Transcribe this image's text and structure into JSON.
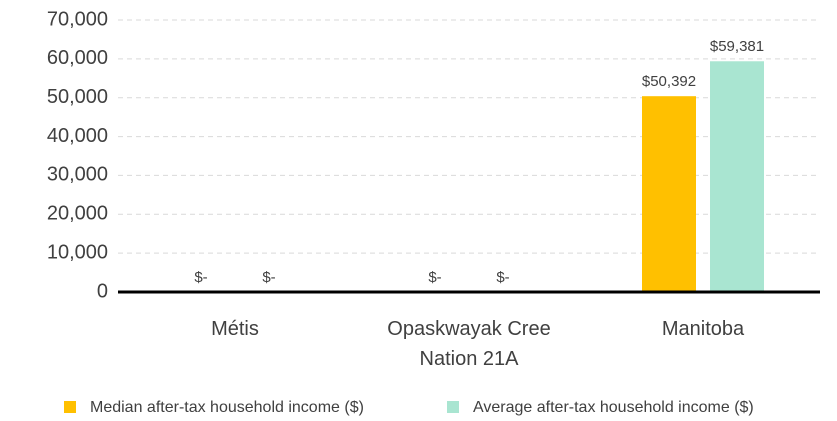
{
  "chart_data": {
    "type": "bar",
    "categories": [
      "Métis",
      "Opaskwayak Cree Nation 21A",
      "Manitoba"
    ],
    "series": [
      {
        "name": "Median after-tax household income ($)",
        "color": "#ffc000",
        "values": [
          0,
          0,
          50392
        ],
        "value_labels": [
          "$-",
          "$-",
          "$50,392"
        ]
      },
      {
        "name": "Average after-tax household income ($)",
        "color": "#a9e5d1",
        "values": [
          0,
          0,
          59381
        ],
        "value_labels": [
          "$-",
          "$-",
          "$59,381"
        ]
      }
    ],
    "ylim": [
      0,
      70000
    ],
    "yticks": [
      0,
      {
        "value": 10000,
        "label": "10,000"
      },
      {
        "value": 20000,
        "label": "20,000"
      },
      {
        "value": 30000,
        "label": "30,000"
      },
      {
        "value": 40000,
        "label": "40,000"
      },
      {
        "value": 50000,
        "label": "50,000"
      },
      {
        "value": 60000,
        "label": "60,000"
      },
      {
        "value": 70000,
        "label": "70,000"
      }
    ],
    "grid": true,
    "legend": "bottom"
  }
}
